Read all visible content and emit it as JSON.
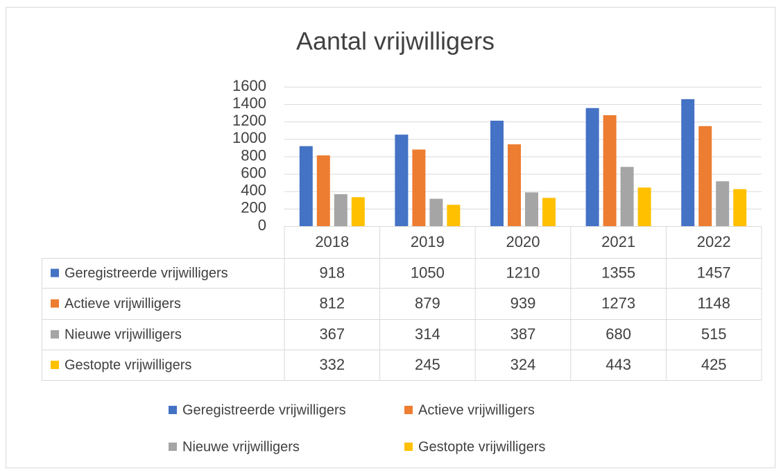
{
  "chart_data": {
    "type": "bar",
    "title": "Aantal vrijwilligers",
    "categories": [
      "2018",
      "2019",
      "2020",
      "2021",
      "2022"
    ],
    "series": [
      {
        "name": "Geregistreerde vrijwilligers",
        "color": "#4472c4",
        "values": [
          918,
          1050,
          1210,
          1355,
          1457
        ]
      },
      {
        "name": "Actieve vrijwilligers",
        "color": "#ed7d31",
        "values": [
          812,
          879,
          939,
          1273,
          1148
        ]
      },
      {
        "name": "Nieuwe vrijwilligers",
        "color": "#a5a5a5",
        "values": [
          367,
          314,
          387,
          680,
          515
        ]
      },
      {
        "name": "Gestopte vrijwilligers",
        "color": "#ffc000",
        "values": [
          332,
          245,
          324,
          443,
          425
        ]
      }
    ],
    "ylim": [
      0,
      1600
    ],
    "yticks": [
      0,
      200,
      400,
      600,
      800,
      1000,
      1200,
      1400,
      1600
    ],
    "grid": true
  }
}
